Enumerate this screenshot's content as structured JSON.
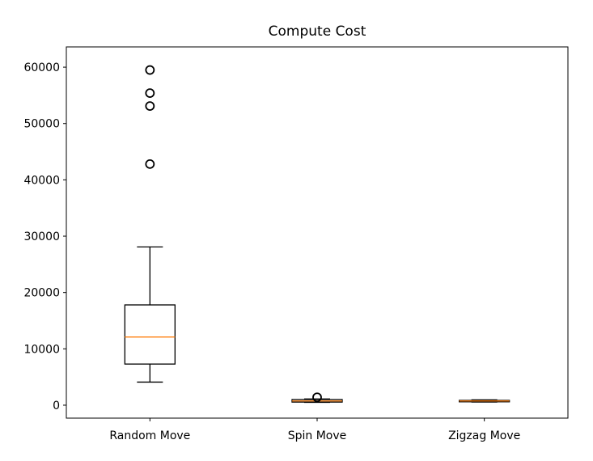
{
  "chart_data": {
    "type": "box",
    "title": "Compute Cost",
    "xlabel": "",
    "ylabel": "",
    "ylim": [
      -2300,
      63600
    ],
    "yticks": [
      0,
      10000,
      20000,
      30000,
      40000,
      50000,
      60000
    ],
    "ytick_labels": [
      "0",
      "10000",
      "20000",
      "30000",
      "40000",
      "50000",
      "60000"
    ],
    "categories": [
      "Random Move",
      "Spin Move",
      "Zigzag Move"
    ],
    "boxes": [
      {
        "category": "Random Move",
        "whisker_low": 4100,
        "q1": 7300,
        "median": 12100,
        "q3": 17800,
        "whisker_high": 28100,
        "outliers": [
          42800,
          53100,
          55400,
          59500
        ]
      },
      {
        "category": "Spin Move",
        "whisker_low": 500,
        "q1": 550,
        "median": 750,
        "q3": 1000,
        "whisker_high": 1100,
        "outliers": [
          1400
        ]
      },
      {
        "category": "Zigzag Move",
        "whisker_low": 550,
        "q1": 600,
        "median": 750,
        "q3": 850,
        "whisker_high": 950,
        "outliers": []
      }
    ],
    "grid": false,
    "colors": {
      "box": "#000000",
      "median": "#ff7f0e",
      "flier": "#000000"
    }
  }
}
